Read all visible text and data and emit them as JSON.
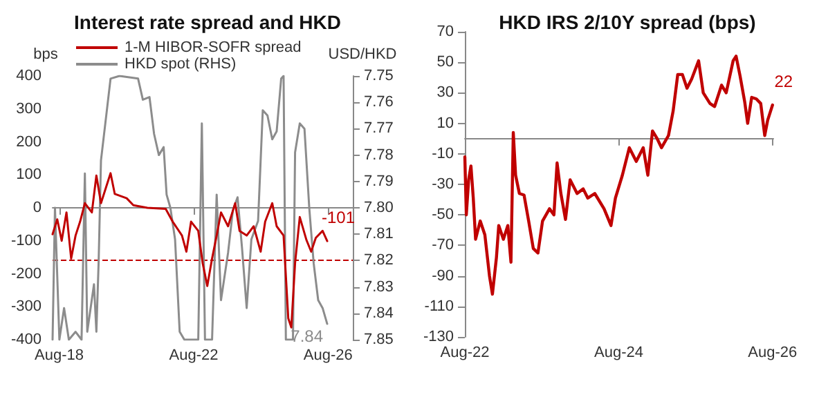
{
  "chart_data": [
    {
      "type": "line",
      "title": "Interest rate spread and HKD",
      "ylabel": "bps",
      "y2label": "USD/HKD",
      "legend": "top",
      "grid": false,
      "marker": "none",
      "line_style": "solid",
      "xlim": [
        "2018-05-21",
        "2027-04-26"
      ],
      "xticks": [
        {
          "value": "2018-08-01",
          "label": "Aug-18"
        },
        {
          "value": "2022-08-01",
          "label": "Aug-22"
        },
        {
          "value": "2026-08-01",
          "label": "Aug-26"
        }
      ],
      "ylim": [
        -400,
        400
      ],
      "yticks": [
        -400,
        -300,
        -200,
        -100,
        0,
        100,
        200,
        300,
        400
      ],
      "y2lim": [
        7.85,
        7.75
      ],
      "y2ticks": [
        7.75,
        7.76,
        7.77,
        7.78,
        7.79,
        {
          "value": 7.8,
          "label": "7.80"
        },
        7.81,
        7.82,
        7.83,
        7.84,
        7.85
      ],
      "ref_lines": [
        {
          "axis": "y",
          "value": -160,
          "color": "#c00000",
          "line_style": "dashed"
        }
      ],
      "series": [
        {
          "name": "1-M HIBOR-SOFR spread",
          "color": "#c00000",
          "x": [
            "2018-05-21",
            "2018-07-11",
            "2018-08-28",
            "2018-10-19",
            "2018-12-09",
            "2019-01-26",
            "2019-03-16",
            "2019-05-07",
            "2019-07-22",
            "2019-09-09",
            "2019-10-29",
            "2020-02-10",
            "2020-03-27",
            "2020-08-03",
            "2020-10-15",
            "2021-03-16",
            "2021-10-01",
            "2021-12-16",
            "2022-03-27",
            "2022-05-14",
            "2022-07-04",
            "2022-09-20",
            "2022-11-07",
            "2022-12-27",
            "2023-02-17",
            "2023-04-08",
            "2023-05-25",
            "2023-08-10",
            "2023-10-26",
            "2023-12-13",
            "2024-02-28",
            "2024-05-14",
            "2024-07-29",
            "2024-09-16",
            "2024-12-02",
            "2025-01-19",
            "2025-04-04",
            "2025-05-25",
            "2025-06-27",
            "2025-08-07",
            "2025-09-27",
            "2025-12-09",
            "2026-01-29",
            "2026-03-20",
            "2026-06-02",
            "2026-07-22"
          ],
          "values": [
            -80,
            -35,
            -100,
            -14,
            -154,
            -84,
            -42,
            14,
            -14,
            98,
            14,
            105,
            42,
            29,
            8,
            0,
            -3,
            -42,
            -84,
            -133,
            -42,
            -70,
            -168,
            -237,
            -154,
            -84,
            -14,
            -56,
            14,
            -70,
            -84,
            -56,
            -133,
            -42,
            14,
            -56,
            -84,
            -335,
            -363,
            -168,
            -28,
            -98,
            -133,
            -91,
            -70,
            -101
          ],
          "value_labels": [
            null,
            null,
            null,
            null,
            null,
            null,
            null,
            null,
            null,
            null,
            null,
            null,
            null,
            null,
            null,
            null,
            null,
            null,
            null,
            null,
            null,
            null,
            null,
            null,
            null,
            null,
            null,
            null,
            null,
            null,
            null,
            null,
            null,
            null,
            null,
            null,
            null,
            null,
            null,
            null,
            null,
            null,
            null,
            null,
            null,
            "-101"
          ]
        },
        {
          "name": "HKD spot (RHS)",
          "color": "#8c8c8c",
          "axis": "y2",
          "x": [
            "2018-05-21",
            "2018-06-16",
            "2018-08-03",
            "2018-09-23",
            "2018-11-14",
            "2019-01-26",
            "2019-04-01",
            "2019-05-07",
            "2019-06-02",
            "2019-08-14",
            "2019-09-09",
            "2019-10-04",
            "2019-10-29",
            "2019-11-25",
            "2020-01-01",
            "2020-02-10",
            "2020-05-17",
            "2020-12-05",
            "2021-01-26",
            "2021-04-08",
            "2021-05-28",
            "2021-07-19",
            "2021-09-09",
            "2021-10-11",
            "2021-11-21",
            "2022-01-11",
            "2022-03-02",
            "2022-04-22",
            "2022-09-20",
            "2022-10-29",
            "2022-12-02",
            "2023-02-17",
            "2023-04-08",
            "2023-05-25",
            "2023-08-10",
            "2023-10-01",
            "2023-11-21",
            "2024-01-08",
            "2024-02-28",
            "2024-04-19",
            "2024-07-01",
            "2024-08-21",
            "2024-10-11",
            "2024-12-02",
            "2025-01-19",
            "2025-03-09",
            "2025-04-04",
            "2025-04-29",
            "2025-07-15",
            "2025-08-07",
            "2025-09-27",
            "2025-11-17",
            "2026-01-08",
            "2026-02-25",
            "2026-04-15",
            "2026-06-02",
            "2026-07-22"
          ],
          "values": [
            7.85,
            7.8,
            7.85,
            7.838,
            7.85,
            7.847,
            7.85,
            7.787,
            7.847,
            7.829,
            7.847,
            7.82,
            7.782,
            7.774,
            7.763,
            7.751,
            7.75,
            7.751,
            7.759,
            7.758,
            7.772,
            7.78,
            7.777,
            7.795,
            7.8,
            7.812,
            7.847,
            7.85,
            7.85,
            7.768,
            7.85,
            7.85,
            7.795,
            7.835,
            7.817,
            7.801,
            7.796,
            7.815,
            7.838,
            7.812,
            7.805,
            7.763,
            7.765,
            7.774,
            7.771,
            7.751,
            7.75,
            7.85,
            7.85,
            7.779,
            7.768,
            7.77,
            7.8,
            7.821,
            7.835,
            7.838,
            7.844
          ],
          "value_labels": [
            null,
            null,
            null,
            null,
            null,
            null,
            null,
            null,
            null,
            null,
            null,
            null,
            null,
            null,
            null,
            null,
            null,
            null,
            null,
            null,
            null,
            null,
            null,
            null,
            null,
            null,
            null,
            null,
            null,
            null,
            null,
            null,
            null,
            null,
            null,
            null,
            null,
            null,
            null,
            null,
            null,
            null,
            null,
            null,
            null,
            null,
            null,
            null,
            null,
            null,
            null,
            null,
            null,
            null,
            null,
            null,
            "7.84"
          ]
        }
      ]
    },
    {
      "type": "line",
      "title": "HKD IRS 2/10Y spread (bps)",
      "grid": false,
      "marker": "none",
      "line_style": "solid",
      "xlim": [
        "2022-08-01",
        "2026-08-05"
      ],
      "xticks": [
        {
          "value": "2022-08-01",
          "label": "Aug-22"
        },
        {
          "value": "2024-08-01",
          "label": "Aug-24"
        },
        {
          "value": "2026-08-01",
          "label": "Aug-26"
        }
      ],
      "ylim": [
        -130,
        70
      ],
      "yticks": [
        -130,
        -110,
        -90,
        -70,
        -50,
        -30,
        -10,
        10,
        30,
        50,
        70
      ],
      "series": [
        {
          "color": "#c00000",
          "x": [
            "2022-08-01",
            "2022-08-08",
            "2022-08-19",
            "2022-08-30",
            "2022-09-10",
            "2022-09-21",
            "2022-10-13",
            "2022-11-04",
            "2022-11-26",
            "2022-12-10",
            "2022-12-29",
            "2023-01-09",
            "2023-01-31",
            "2023-02-21",
            "2023-03-08",
            "2023-03-19",
            "2023-03-30",
            "2023-04-17",
            "2023-05-09",
            "2023-05-31",
            "2023-06-22",
            "2023-07-14",
            "2023-08-05",
            "2023-09-07",
            "2023-09-28",
            "2023-10-13",
            "2023-10-31",
            "2023-11-22",
            "2023-12-14",
            "2024-01-16",
            "2024-02-14",
            "2024-03-07",
            "2024-04-09",
            "2024-05-23",
            "2024-06-25",
            "2024-07-16",
            "2024-08-18",
            "2024-09-20",
            "2024-10-23",
            "2024-11-25",
            "2024-12-17",
            "2025-01-08",
            "2025-01-30",
            "2025-02-20",
            "2025-03-25",
            "2025-04-16",
            "2025-05-08",
            "2025-05-30",
            "2025-06-21",
            "2025-07-13",
            "2025-08-15",
            "2025-09-06",
            "2025-10-08",
            "2025-10-30",
            "2025-12-02",
            "2025-12-24",
            "2026-01-26",
            "2026-02-09",
            "2026-02-28",
            "2026-03-22",
            "2026-04-05",
            "2026-04-24",
            "2026-05-16",
            "2026-06-06",
            "2026-06-25",
            "2026-07-09",
            "2026-08-01"
          ],
          "values": [
            -12,
            -50,
            -27,
            -18,
            -39,
            -66,
            -54,
            -63,
            -90,
            -102,
            -78,
            -57,
            -66,
            -57,
            -81,
            4,
            -24,
            -36,
            -37,
            -54,
            -72,
            -75,
            -54,
            -46,
            -50,
            -16,
            -36,
            -53,
            -27,
            -36,
            -33,
            -39,
            -36,
            -46,
            -57,
            -39,
            -24,
            -6,
            -15,
            -6,
            -24,
            5,
            0,
            -6,
            2,
            18,
            42,
            42,
            33,
            39,
            51,
            30,
            23,
            21,
            35,
            30,
            51,
            54,
            41,
            24,
            10,
            27,
            26,
            23,
            2,
            12,
            22
          ],
          "value_labels": [
            null,
            null,
            null,
            null,
            null,
            null,
            null,
            null,
            null,
            null,
            null,
            null,
            null,
            null,
            null,
            null,
            null,
            null,
            null,
            null,
            null,
            null,
            null,
            null,
            null,
            null,
            null,
            null,
            null,
            null,
            null,
            null,
            null,
            null,
            null,
            null,
            null,
            null,
            null,
            null,
            null,
            null,
            null,
            null,
            null,
            null,
            null,
            null,
            null,
            null,
            null,
            null,
            null,
            null,
            null,
            null,
            null,
            null,
            null,
            null,
            null,
            null,
            null,
            null,
            null,
            null,
            "22"
          ]
        }
      ]
    }
  ]
}
